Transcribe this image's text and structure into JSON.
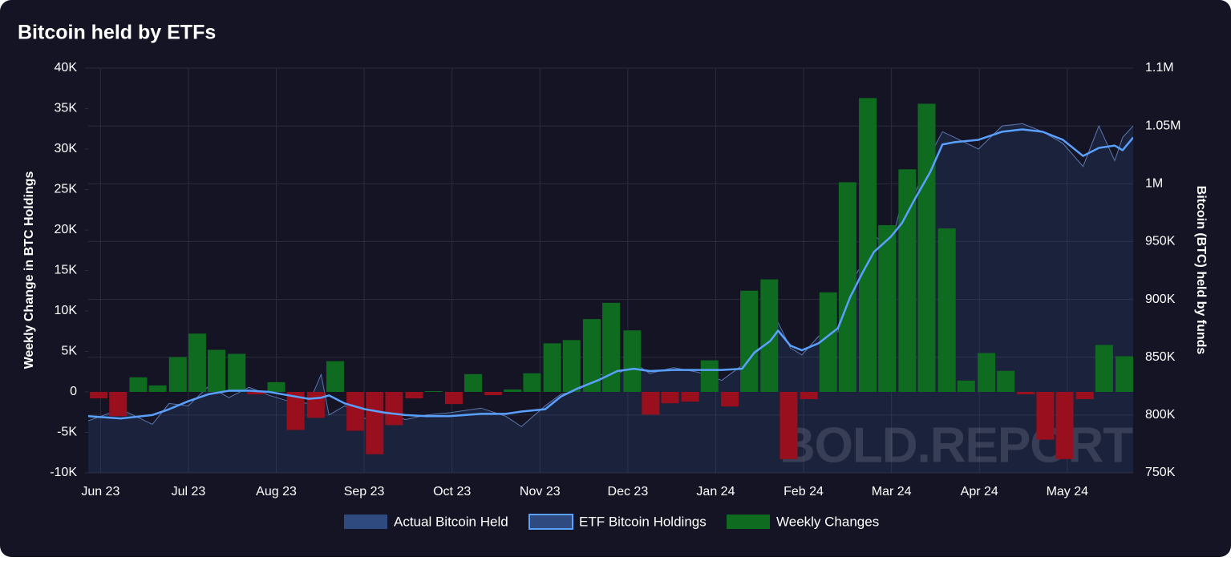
{
  "chart_data": {
    "type": "combo",
    "title": "Bitcoin held by ETFs",
    "y_label": "Weekly Change in BTC Holdings",
    "y2_label": "Bitcoin (BTC) held by funds",
    "watermark": "BOLD.REPORT",
    "grid": true,
    "legend": "bottom",
    "xlim": [
      -0.14,
      11.75
    ],
    "xticks": [
      {
        "value": 0,
        "label": "Jun 23"
      },
      {
        "value": 1,
        "label": "Jul 23"
      },
      {
        "value": 2,
        "label": "Aug 23"
      },
      {
        "value": 3,
        "label": "Sep 23"
      },
      {
        "value": 4,
        "label": "Oct 23"
      },
      {
        "value": 5,
        "label": "Nov 23"
      },
      {
        "value": 6,
        "label": "Dec 23"
      },
      {
        "value": 7,
        "label": "Jan 24"
      },
      {
        "value": 8,
        "label": "Feb 24"
      },
      {
        "value": 9,
        "label": "Mar 24"
      },
      {
        "value": 10,
        "label": "Apr 24"
      },
      {
        "value": 11,
        "label": "May 24"
      }
    ],
    "ylim": [
      -10000,
      40000
    ],
    "yticks": [
      {
        "value": -10000,
        "label": "-10K"
      },
      {
        "value": -5000,
        "label": "-5K"
      },
      0,
      {
        "value": 5000,
        "label": "5K"
      },
      {
        "value": 10000,
        "label": "10K"
      },
      {
        "value": 15000,
        "label": "15K"
      },
      {
        "value": 20000,
        "label": "20K"
      },
      {
        "value": 25000,
        "label": "25K"
      },
      {
        "value": 30000,
        "label": "30K"
      },
      {
        "value": 35000,
        "label": "35K"
      },
      {
        "value": 40000,
        "label": "40K"
      }
    ],
    "y2lim": [
      750000,
      1100000
    ],
    "y2ticks": [
      {
        "value": 750000,
        "label": "750K"
      },
      {
        "value": 800000,
        "label": "800K"
      },
      {
        "value": 850000,
        "label": "850K"
      },
      {
        "value": 900000,
        "label": "900K"
      },
      {
        "value": 950000,
        "label": "950K"
      },
      {
        "value": 1000000,
        "label": "1M"
      },
      {
        "value": 1050000,
        "label": "1.05M"
      },
      {
        "value": 1100000,
        "label": "1.1M"
      }
    ],
    "series": [
      {
        "name": "Actual Bitcoin Held",
        "type": "area",
        "axis": "y2",
        "color": "#2f4a7e",
        "x": [
          -0.14,
          0.23,
          0.59,
          0.78,
          1.0,
          1.23,
          1.46,
          1.69,
          1.92,
          2.14,
          2.37,
          2.51,
          2.6,
          2.78,
          3.01,
          3.24,
          3.47,
          3.7,
          3.97,
          4.33,
          4.61,
          4.79,
          5.06,
          5.24,
          5.43,
          5.66,
          5.88,
          6.07,
          6.25,
          6.52,
          6.8,
          7.07,
          7.3,
          7.44,
          7.62,
          7.71,
          7.85,
          7.98,
          8.17,
          8.39,
          8.53,
          8.67,
          8.8,
          8.99,
          9.12,
          9.26,
          9.44,
          9.58,
          9.72,
          9.99,
          10.26,
          10.49,
          10.72,
          10.95,
          11.18,
          11.36,
          11.54,
          11.63,
          11.75
        ],
        "values": [
          795000,
          805000,
          792000,
          810000,
          808000,
          825000,
          815000,
          824000,
          817000,
          812000,
          810000,
          835000,
          800000,
          808000,
          797000,
          803000,
          796000,
          800000,
          802000,
          806000,
          799000,
          790000,
          808000,
          818000,
          821000,
          835000,
          835000,
          845000,
          836000,
          841000,
          837000,
          830000,
          843000,
          852000,
          867000,
          880000,
          858000,
          852000,
          868000,
          872000,
          915000,
          930000,
          955000,
          945000,
          985000,
          990000,
          1025000,
          1045000,
          1040000,
          1030000,
          1050000,
          1052000,
          1045000,
          1035000,
          1015000,
          1050000,
          1020000,
          1040000,
          1050000
        ]
      },
      {
        "name": "ETF Bitcoin Holdings",
        "type": "line",
        "axis": "y2",
        "color": "#5aa0ff",
        "x": [
          -0.14,
          0.23,
          0.59,
          0.78,
          1.0,
          1.23,
          1.46,
          1.69,
          1.92,
          2.14,
          2.37,
          2.51,
          2.6,
          2.78,
          3.01,
          3.24,
          3.47,
          3.7,
          3.97,
          4.33,
          4.61,
          4.79,
          5.06,
          5.24,
          5.43,
          5.66,
          5.88,
          6.07,
          6.25,
          6.52,
          6.8,
          7.07,
          7.3,
          7.44,
          7.62,
          7.71,
          7.85,
          7.98,
          8.17,
          8.39,
          8.53,
          8.67,
          8.8,
          8.99,
          9.12,
          9.26,
          9.44,
          9.58,
          9.72,
          9.99,
          10.26,
          10.49,
          10.72,
          10.95,
          11.18,
          11.36,
          11.54,
          11.63,
          11.75
        ],
        "values": [
          799000,
          797000,
          800000,
          805000,
          812000,
          818000,
          821000,
          821000,
          820000,
          817000,
          814000,
          815000,
          817000,
          810000,
          805000,
          802000,
          800000,
          799000,
          799000,
          801000,
          801000,
          803000,
          805000,
          816000,
          823000,
          830000,
          838000,
          840000,
          838000,
          839000,
          839000,
          839000,
          840000,
          854000,
          864000,
          873000,
          860000,
          856000,
          862000,
          875000,
          902000,
          923000,
          941000,
          954000,
          966000,
          986000,
          1010000,
          1034000,
          1036000,
          1038000,
          1045000,
          1047000,
          1045000,
          1038000,
          1024000,
          1031000,
          1033000,
          1029000,
          1040000
        ]
      },
      {
        "name": "Weekly Changes",
        "type": "bar",
        "axis": "y",
        "color": "#0f6b1f",
        "negative_color": "#9a0f1e",
        "x": [
          -0.02,
          0.2,
          0.43,
          0.65,
          0.88,
          1.1,
          1.32,
          1.55,
          1.77,
          2.0,
          2.22,
          2.45,
          2.67,
          2.9,
          3.12,
          3.34,
          3.57,
          3.79,
          4.02,
          4.24,
          4.47,
          4.69,
          4.91,
          5.14,
          5.36,
          5.59,
          5.81,
          6.05,
          6.26,
          6.48,
          6.71,
          6.93,
          7.16,
          7.38,
          7.61,
          7.83,
          8.06,
          8.28,
          8.5,
          8.73,
          8.95,
          9.18,
          9.4,
          9.63,
          9.85,
          10.08,
          10.3,
          10.53,
          10.75,
          10.97,
          11.2,
          11.42,
          11.65
        ],
        "values": [
          -800,
          -3000,
          1800,
          800,
          4300,
          7200,
          5200,
          4700,
          -300,
          1200,
          -4700,
          -3200,
          3800,
          -4800,
          -7700,
          -4100,
          -800,
          100,
          -1500,
          2200,
          -400,
          300,
          2300,
          6000,
          6400,
          9000,
          11000,
          7600,
          -2800,
          -1400,
          -1200,
          3900,
          -1800,
          12500,
          13900,
          -8300,
          -900,
          12300,
          25900,
          36300,
          20600,
          27500,
          35600,
          20200,
          1400,
          4800,
          2600,
          -300,
          -5900,
          -8300,
          -900,
          5800,
          4400
        ]
      }
    ]
  }
}
